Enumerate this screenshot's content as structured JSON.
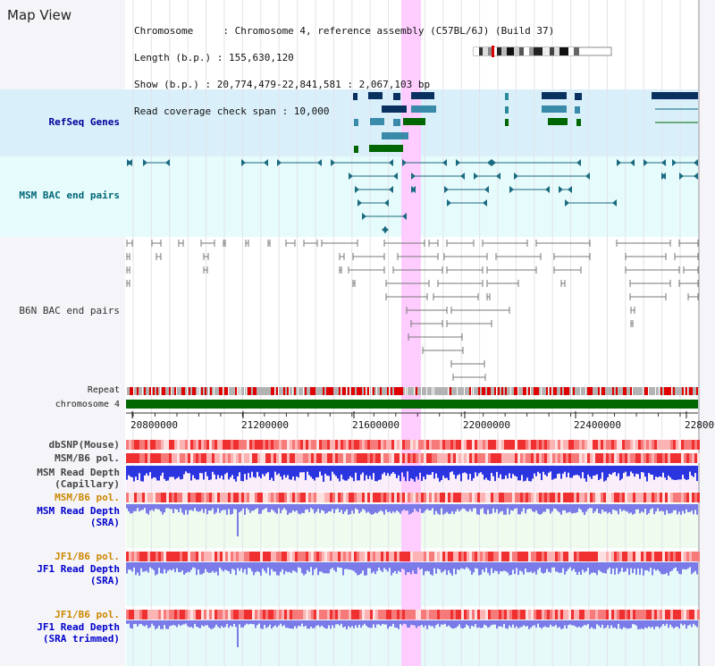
{
  "title": "Map View",
  "info": {
    "chromosome_line": "Chromosome     : Chromosome 4, reference assembly (C57BL/6J) (Build 37)",
    "length_line": "Length (b.p.) : 155,630,120",
    "show_line": "Show (b.p.) : 20,774,479-22,841,581 : 2,067,103 bp",
    "span_line": "Read coverage check span : 10,000"
  },
  "tracks": {
    "refseq": "RefSeq Genes",
    "msm_bac": "MSM BAC end pairs",
    "b6n_bac": "B6N BAC end pairs",
    "repeat": "Repeat",
    "chromosome": "chromosome 4",
    "dbsnp": "dbSNP(Mouse)",
    "msm_b6_pol_1": "MSM/B6 pol.",
    "msm_read_depth_cap_1": "MSM Read Depth",
    "msm_read_depth_cap_2": "(Capillary)",
    "msm_b6_pol_2": "MSM/B6 pol.",
    "msm_read_depth_sra_1": "MSM Read Depth",
    "msm_read_depth_sra_2": "(SRA)",
    "jf1_b6_pol_1": "JF1/B6 pol.",
    "jf1_read_depth_sra_1": "JF1 Read Depth",
    "jf1_read_depth_sra_2": "(SRA)",
    "jf1_b6_pol_2": "JF1/B6 pol.",
    "jf1_read_depth_trim_1": "JF1 Read Depth",
    "jf1_read_depth_trim_2": "(SRA trimmed)"
  },
  "axis_ticks": [
    "20800000",
    "21200000",
    "21600000",
    "22000000",
    "22400000",
    "22800"
  ],
  "colors": {
    "refseq_label": "#000099",
    "msm_label": "#006677",
    "orange_label": "#cc8800",
    "blue_label": "#0000cc",
    "highlight": "#ffccff",
    "refseq_bg": "#d9f0fa",
    "msm_bg": "#e6fbfb",
    "chromosome_bar": "#006600"
  }
}
